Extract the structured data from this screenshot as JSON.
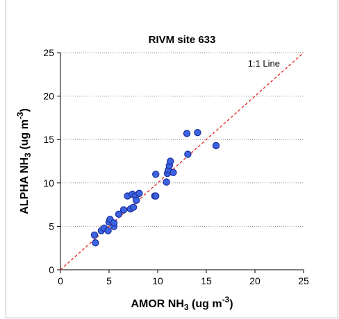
{
  "chart_data": {
    "type": "scatter",
    "title": "RIVM site 633",
    "xlabel": {
      "pre": "AMOR NH",
      "sub": "3",
      "mid": " (ug m",
      "sup": "-3",
      "post": ")"
    },
    "ylabel": {
      "pre": "ALPHA NH",
      "sub": "3",
      "mid": " (ug m",
      "sup": "-3",
      "post": ")"
    },
    "xlim": [
      0,
      25
    ],
    "ylim": [
      0,
      25
    ],
    "xticks": [
      "0",
      "5",
      "10",
      "15",
      "20",
      "25"
    ],
    "yticks": [
      "0",
      "5",
      "10",
      "15",
      "20",
      "25"
    ],
    "grid": "horizontal-dotted",
    "reference_line": {
      "label": "1:1 Line",
      "slope": 1,
      "intercept": 0,
      "color": "#e8211c",
      "style": "dashed"
    },
    "marker_fill": "#3c63e0",
    "marker_edge": "#1b2f9c",
    "points": [
      {
        "x": 3.5,
        "y": 4.0
      },
      {
        "x": 3.6,
        "y": 3.1
      },
      {
        "x": 4.2,
        "y": 4.5
      },
      {
        "x": 4.5,
        "y": 4.8
      },
      {
        "x": 4.9,
        "y": 4.5
      },
      {
        "x": 5.0,
        "y": 5.5
      },
      {
        "x": 5.1,
        "y": 5.8
      },
      {
        "x": 5.5,
        "y": 5.0
      },
      {
        "x": 5.5,
        "y": 5.4
      },
      {
        "x": 6.0,
        "y": 6.4
      },
      {
        "x": 6.5,
        "y": 6.9
      },
      {
        "x": 6.9,
        "y": 8.5
      },
      {
        "x": 7.2,
        "y": 7.0
      },
      {
        "x": 7.4,
        "y": 8.7
      },
      {
        "x": 7.5,
        "y": 7.2
      },
      {
        "x": 7.7,
        "y": 8.5
      },
      {
        "x": 7.8,
        "y": 8.0
      },
      {
        "x": 8.1,
        "y": 8.8
      },
      {
        "x": 9.7,
        "y": 8.5
      },
      {
        "x": 9.8,
        "y": 8.5
      },
      {
        "x": 9.8,
        "y": 11.0
      },
      {
        "x": 10.9,
        "y": 10.1
      },
      {
        "x": 11.0,
        "y": 11.1
      },
      {
        "x": 11.1,
        "y": 11.5
      },
      {
        "x": 11.2,
        "y": 12.0
      },
      {
        "x": 11.3,
        "y": 12.5
      },
      {
        "x": 11.6,
        "y": 11.2
      },
      {
        "x": 13.0,
        "y": 15.7
      },
      {
        "x": 13.1,
        "y": 13.3
      },
      {
        "x": 14.1,
        "y": 15.8
      },
      {
        "x": 16.0,
        "y": 14.3
      }
    ]
  }
}
